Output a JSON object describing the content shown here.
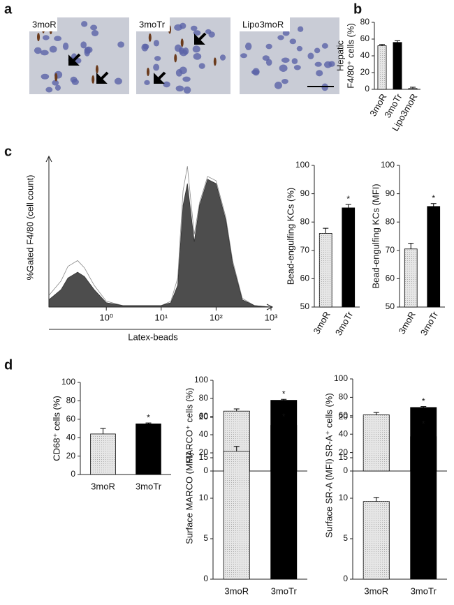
{
  "panel_labels": [
    "a",
    "b",
    "c",
    "d"
  ],
  "micrographs": [
    "3moR",
    "3moTr",
    "Lipo3moR"
  ],
  "chart_data": [
    {
      "type": "bar",
      "ylabel": [
        "Hepatic",
        "F4/80⁺ cells (%)"
      ],
      "categories": [
        "3moR",
        "3moTr",
        "Lipo3moR"
      ],
      "values": [
        52,
        56,
        1
      ],
      "errors": [
        1.5,
        2,
        1.5
      ],
      "colors": [
        "#e6e6e6",
        "#000000",
        "#ffffff"
      ],
      "ylim": [
        0,
        80
      ],
      "yticks": [
        0,
        20,
        40,
        60,
        80
      ]
    },
    {
      "type": "area",
      "ylabel": "%Gated F4/80 (cell count)",
      "xlabel": "Latex-beads",
      "log_x": true,
      "x": [
        0.09,
        0.15,
        0.2,
        0.3,
        0.4,
        0.6,
        1,
        2,
        5,
        10,
        15,
        20,
        25,
        30,
        40,
        50,
        70,
        100,
        150,
        200,
        300,
        500,
        1000
      ],
      "series": [
        {
          "color": "#ffffff",
          "values": [
            8,
            18,
            28,
            32,
            27,
            15,
            4,
            1,
            1,
            1,
            4,
            20,
            80,
            97,
            50,
            72,
            90,
            87,
            62,
            32,
            6,
            1,
            0
          ]
        },
        {
          "color": "#4d4d4d",
          "values": [
            5,
            12,
            20,
            24,
            21,
            12,
            3,
            1,
            1,
            1,
            3,
            15,
            70,
            85,
            45,
            70,
            88,
            85,
            60,
            30,
            5,
            1,
            0
          ]
        }
      ],
      "xlim": [
        0.09,
        1000
      ],
      "ylim": [
        0,
        100
      ],
      "xticks": [
        {
          "value": 1,
          "label": "10⁰"
        },
        {
          "value": 10,
          "label": "10¹"
        },
        {
          "value": 100,
          "label": "10²"
        },
        {
          "value": 1000,
          "label": "10³"
        }
      ]
    },
    {
      "type": "bar",
      "ylabel": "Bead-engulfing KCs (%)",
      "categories": [
        "3moR",
        "3moTr"
      ],
      "values": [
        76,
        85
      ],
      "errors": [
        1.8,
        1.2
      ],
      "colors": [
        "#e6e6e6",
        "#000000"
      ],
      "annotations": [
        null,
        "*"
      ],
      "ylim": [
        50,
        100
      ],
      "yticks": [
        50,
        60,
        70,
        80,
        90,
        100
      ]
    },
    {
      "type": "bar",
      "ylabel": "Bead-engulfing KCs (MFI)",
      "categories": [
        "3moR",
        "3moTr"
      ],
      "values": [
        70.5,
        85.5
      ],
      "errors": [
        2,
        1
      ],
      "colors": [
        "#e6e6e6",
        "#000000"
      ],
      "annotations": [
        null,
        "*"
      ],
      "ylim": [
        50,
        100
      ],
      "yticks": [
        50,
        60,
        70,
        80,
        90,
        100
      ]
    },
    {
      "type": "bar",
      "ylabel": "CD68⁺ cells (%)",
      "categories": [
        "3moR",
        "3moTr"
      ],
      "values": [
        44,
        55
      ],
      "errors": [
        6,
        1
      ],
      "colors": [
        "#e6e6e6",
        "#000000"
      ],
      "annotations": [
        null,
        "*"
      ],
      "ylim": [
        0,
        100
      ],
      "yticks": [
        0,
        20,
        40,
        60,
        80,
        100
      ]
    },
    {
      "type": "bar",
      "ylabel": "MARCO⁺ cells (%)",
      "categories": [
        null,
        null
      ],
      "values": [
        66,
        78
      ],
      "errors": [
        2.5,
        1
      ],
      "colors": [
        "#e6e6e6",
        "#000000"
      ],
      "annotations": [
        null,
        "*"
      ],
      "ylim": [
        0,
        100
      ],
      "yticks": [
        0,
        20,
        40,
        60,
        80,
        100
      ]
    },
    {
      "type": "bar",
      "ylabel": "SR-A⁺ cells (%)",
      "categories": [
        null,
        null
      ],
      "values": [
        61,
        69
      ],
      "errors": [
        2.5,
        1
      ],
      "colors": [
        "#e6e6e6",
        "#000000"
      ],
      "annotations": [
        null,
        "*"
      ],
      "ylim": [
        0,
        100
      ],
      "yticks": [
        0,
        20,
        40,
        60,
        80,
        100
      ]
    },
    {
      "type": "bar",
      "ylabel": "Surface MARCO (MFI)",
      "categories": [
        "3moR",
        "3moTr"
      ],
      "values": [
        15.8,
        19
      ],
      "errors": [
        0.6,
        0.4
      ],
      "colors": [
        "#e6e6e6",
        "#000000"
      ],
      "annotations": [
        null,
        "*"
      ],
      "ylim": [
        0,
        20
      ],
      "yticks": [
        0,
        5,
        10,
        15,
        20
      ]
    },
    {
      "type": "bar",
      "ylabel": "Surface SR-A (MFI)",
      "categories": [
        "3moR",
        "3moTr"
      ],
      "values": [
        9.6,
        17.6
      ],
      "errors": [
        0.5,
        0.9
      ],
      "colors": [
        "#e6e6e6",
        "#000000"
      ],
      "annotations": [
        null,
        "*"
      ],
      "ylim": [
        0,
        20
      ],
      "yticks": [
        0,
        5,
        10,
        15,
        20
      ]
    }
  ]
}
